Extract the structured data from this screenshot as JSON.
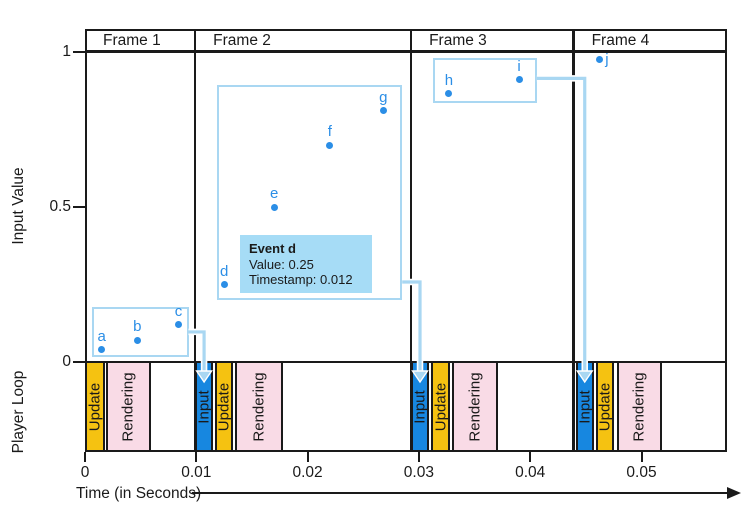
{
  "chart_data": {
    "type": "scatter",
    "xlabel": "Time (in Seconds)",
    "ylabel": "Input Value",
    "ylabel_loop": "Player Loop",
    "xlim": [
      0,
      0.0577
    ],
    "ylim": [
      0,
      1
    ],
    "grid": false,
    "x_axis": {
      "ticks": [
        {
          "t": 0,
          "label": "0"
        },
        {
          "t": 0.01,
          "label": "0.01"
        },
        {
          "t": 0.02,
          "label": "0.02"
        },
        {
          "t": 0.03,
          "label": "0.03"
        },
        {
          "t": 0.04,
          "label": "0.04"
        },
        {
          "t": 0.05,
          "label": "0.05"
        }
      ]
    },
    "y_axis": {
      "ticks": [
        {
          "v": 0,
          "label": "0"
        },
        {
          "v": 0.5,
          "label": "0.5"
        },
        {
          "v": 1,
          "label": "1"
        }
      ]
    },
    "frames": [
      {
        "label": "Frame 1",
        "t0": 0.0,
        "t1": 0.0099
      },
      {
        "label": "Frame 2",
        "t0": 0.0099,
        "t1": 0.0293
      },
      {
        "label": "Frame 3",
        "t0": 0.0293,
        "t1": 0.0439
      },
      {
        "label": "Frame 4",
        "t0": 0.0439,
        "t1": 0.0577
      }
    ],
    "events": [
      {
        "id": "a",
        "t": 0.0015,
        "value": 0.04,
        "label_pos": "above"
      },
      {
        "id": "b",
        "t": 0.0047,
        "value": 0.07,
        "label_pos": "above"
      },
      {
        "id": "c",
        "t": 0.0084,
        "value": 0.12,
        "label_pos": "above"
      },
      {
        "id": "d",
        "t": 0.0125,
        "value": 0.25,
        "label_pos": "above"
      },
      {
        "id": "e",
        "t": 0.017,
        "value": 0.5,
        "label_pos": "above"
      },
      {
        "id": "f",
        "t": 0.022,
        "value": 0.7,
        "label_pos": "above"
      },
      {
        "id": "g",
        "t": 0.0268,
        "value": 0.81,
        "label_pos": "above"
      },
      {
        "id": "h",
        "t": 0.0327,
        "value": 0.865,
        "label_pos": "above"
      },
      {
        "id": "i",
        "t": 0.039,
        "value": 0.91,
        "label_pos": "above"
      },
      {
        "id": "j",
        "t": 0.0462,
        "value": 0.975,
        "label_pos": "right"
      }
    ],
    "player_loop": [
      {
        "frame": "Frame 1",
        "segments": [
          {
            "label": "Update",
            "type": "update",
            "t0": 0.0,
            "t1": 0.0018
          },
          {
            "label": "Rendering",
            "type": "rendering",
            "t0": 0.00189,
            "t1": 0.0059
          }
        ]
      },
      {
        "frame": "Frame 2",
        "segments": [
          {
            "label": "Input",
            "type": "input",
            "t0": 0.0099,
            "t1": 0.0115
          },
          {
            "label": "Update",
            "type": "update",
            "t0": 0.0117,
            "t1": 0.0133
          },
          {
            "label": "Rendering",
            "type": "rendering",
            "t0": 0.0135,
            "t1": 0.0178
          }
        ]
      },
      {
        "frame": "Frame 3",
        "segments": [
          {
            "label": "Input",
            "type": "input",
            "t0": 0.0293,
            "t1": 0.0309
          },
          {
            "label": "Update",
            "type": "update",
            "t0": 0.0311,
            "t1": 0.0328
          },
          {
            "label": "Rendering",
            "type": "rendering",
            "t0": 0.033,
            "t1": 0.0371
          }
        ]
      },
      {
        "frame": "Frame 4",
        "segments": [
          {
            "label": "Input",
            "type": "input",
            "t0": 0.0441,
            "t1": 0.0457
          },
          {
            "label": "Update",
            "type": "update",
            "t0": 0.0459,
            "t1": 0.0475
          },
          {
            "label": "Rendering",
            "type": "rendering",
            "t0": 0.0478,
            "t1": 0.0518
          }
        ]
      }
    ],
    "event_groups": [
      {
        "name": "events-a-c",
        "t0": 0.0006,
        "t1": 0.0093,
        "v0": 0.016,
        "v1": 0.177,
        "connector": {
          "start_v": 0.097,
          "target_loop_frame": 1
        }
      },
      {
        "name": "events-d-g",
        "t0": 0.0119,
        "t1": 0.0285,
        "v0": 0.2,
        "v1": 0.894,
        "connector": {
          "start_v": 0.258,
          "target_loop_frame": 2
        }
      },
      {
        "name": "events-h-i",
        "t0": 0.0313,
        "t1": 0.0406,
        "v0": 0.835,
        "v1": 0.981,
        "connector": {
          "start_v": 0.915,
          "target_loop_frame": 3
        }
      }
    ],
    "tooltip": {
      "title": "Event d",
      "lines": [
        "Value: 0.25",
        "Timestamp: 0.012"
      ]
    }
  },
  "colors": {
    "point_blue": "#2B8EE6",
    "input_bar_blue": "#1787E0",
    "update_yellow": "#F5C211",
    "rendering_pink": "#F9DBE6",
    "annotation_light_blue": "#A9D7F2",
    "tooltip_background": "#A6DCF6",
    "line_black": "#1A1A1A"
  }
}
